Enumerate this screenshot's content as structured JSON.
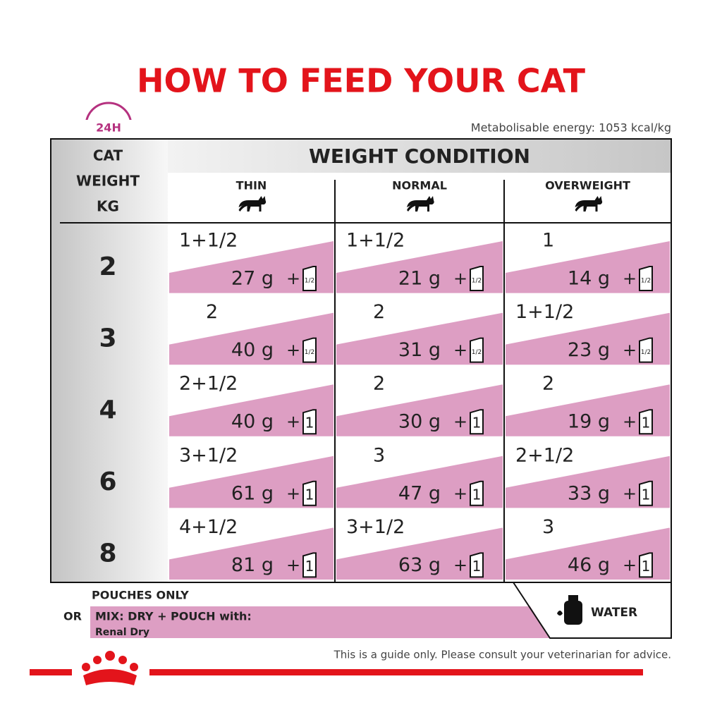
{
  "title": "HOW TO FEED YOUR CAT",
  "clock_label": "24H",
  "energy": "Metabolisable energy: 1053 kcal/kg",
  "plus": "+",
  "table": {
    "weight_header": [
      "CAT",
      "WEIGHT",
      "KG"
    ],
    "condition_header": "WEIGHT CONDITION",
    "columns": [
      "THIN",
      "NORMAL",
      "OVERWEIGHT"
    ],
    "rows": [
      {
        "weight": "2",
        "cells": [
          {
            "pouches": "1+1/2",
            "dry": "27 g",
            "pouch_icon": "1/2"
          },
          {
            "pouches": "1+1/2",
            "dry": "21 g",
            "pouch_icon": "1/2"
          },
          {
            "pouches": "1",
            "dry": "14 g",
            "pouch_icon": "1/2"
          }
        ]
      },
      {
        "weight": "3",
        "cells": [
          {
            "pouches": "2",
            "dry": "40 g",
            "pouch_icon": "1/2"
          },
          {
            "pouches": "2",
            "dry": "31 g",
            "pouch_icon": "1/2"
          },
          {
            "pouches": "1+1/2",
            "dry": "23 g",
            "pouch_icon": "1/2"
          }
        ]
      },
      {
        "weight": "4",
        "cells": [
          {
            "pouches": "2+1/2",
            "dry": "40 g",
            "pouch_icon": "1"
          },
          {
            "pouches": "2",
            "dry": "30 g",
            "pouch_icon": "1"
          },
          {
            "pouches": "2",
            "dry": "19 g",
            "pouch_icon": "1"
          }
        ]
      },
      {
        "weight": "6",
        "cells": [
          {
            "pouches": "3+1/2",
            "dry": "61 g",
            "pouch_icon": "1"
          },
          {
            "pouches": "3",
            "dry": "47 g",
            "pouch_icon": "1"
          },
          {
            "pouches": "2+1/2",
            "dry": "33 g",
            "pouch_icon": "1"
          }
        ]
      },
      {
        "weight": "8",
        "cells": [
          {
            "pouches": "4+1/2",
            "dry": "81 g",
            "pouch_icon": "1"
          },
          {
            "pouches": "3+1/2",
            "dry": "63 g",
            "pouch_icon": "1"
          },
          {
            "pouches": "3",
            "dry": "46 g",
            "pouch_icon": "1"
          }
        ]
      }
    ]
  },
  "footer": {
    "pouches_only": "POUCHES ONLY",
    "or": "OR",
    "mix": "MIX: DRY + POUCH with:",
    "product": "Renal Dry",
    "water": "WATER",
    "disclaimer": "This is a guide only. Please consult your veterinarian for advice."
  }
}
